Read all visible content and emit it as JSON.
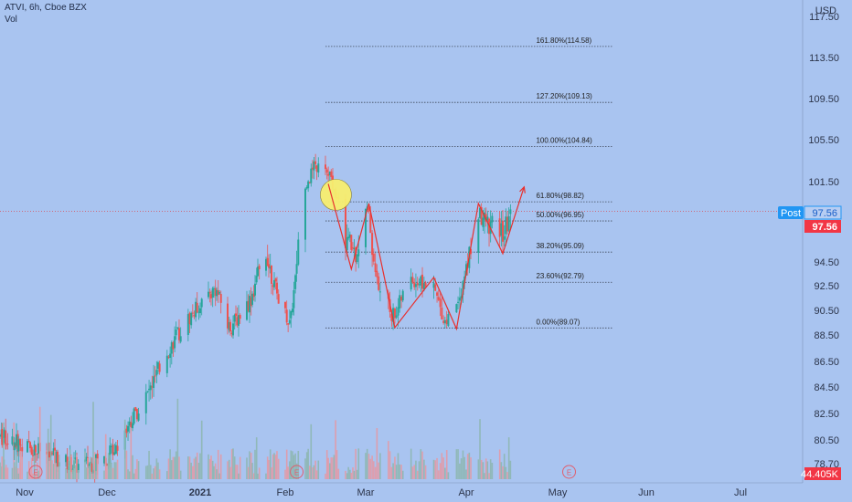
{
  "header": {
    "title": "ATVI, 6h, Cboe BZX",
    "subtitle": "Vol"
  },
  "chart_data": {
    "type": "candlestick",
    "title": "ATVI, 6h, Cboe BZX",
    "currency": "USD",
    "ylim": [
      77.0,
      119.5
    ],
    "y_ticks": [
      "117.50",
      "113.50",
      "109.50",
      "105.50",
      "101.50",
      "97.50",
      "94.50",
      "92.50",
      "90.50",
      "88.50",
      "86.50",
      "84.50",
      "82.50",
      "80.50",
      "78.70"
    ],
    "x_ticks": [
      "Nov",
      "Dec",
      "2021",
      "Feb",
      "Mar",
      "Apr",
      "May",
      "Jun",
      "Jul"
    ],
    "fib_levels": [
      {
        "label": "161.80%(114.58)",
        "price": 114.58
      },
      {
        "label": "127.20%(109.13)",
        "price": 109.13
      },
      {
        "label": "100.00%(104.84)",
        "price": 104.84
      },
      {
        "label": "61.80%(98.82)",
        "price": 98.82
      },
      {
        "label": "50.00%(96.95)",
        "price": 96.95
      },
      {
        "label": "38.20%(95.09)",
        "price": 95.09
      },
      {
        "label": "23.60%(92.79)",
        "price": 92.79
      },
      {
        "label": "0.00%(89.07)",
        "price": 89.07
      }
    ],
    "pattern_path": [
      {
        "date": "2021-02-16",
        "price": 101.2
      },
      {
        "date": "2021-02-24",
        "price": 93.9
      },
      {
        "date": "2021-03-02",
        "price": 98.6
      },
      {
        "date": "2021-03-10",
        "price": 89.1
      },
      {
        "date": "2021-03-22",
        "price": 93.2
      },
      {
        "date": "2021-03-29",
        "price": 89.0
      },
      {
        "date": "2021-04-05",
        "price": 98.6
      },
      {
        "date": "2021-04-13",
        "price": 95.0
      },
      {
        "date": "2021-04-20",
        "price": 100.8
      }
    ],
    "current_price": "97.56",
    "post_label": "Post",
    "post_price": "97.56",
    "volume_label": "44.405K",
    "earnings_marker": "E",
    "earnings_dates": [
      "2020-11-05",
      "2021-02-05",
      "2021-05-05"
    ],
    "highlight_circle": {
      "date": "2021-02-18",
      "price": 100.0
    },
    "candles_generated": true,
    "colors": {
      "background": "#a9c4f0",
      "up": "#26a69a",
      "down": "#ef5350",
      "pattern": "#e8302e",
      "circle": "#f7ef6f",
      "post_badge": "#2196f3",
      "price_badge": "#f23645",
      "vol_badge": "#f23645"
    }
  }
}
